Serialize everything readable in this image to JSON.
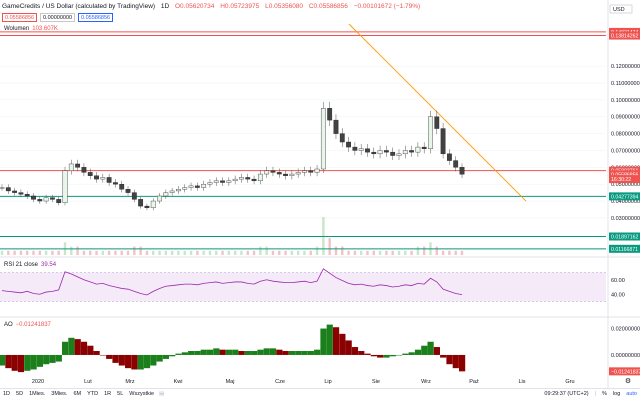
{
  "header": {
    "symbol": "GameCredits / US Dollar (calculated by TradingView)",
    "interval": "1D",
    "open": "O0.05620734",
    "high": "H0.05723975",
    "low": "L0.05356080",
    "close": "C0.05586856",
    "change": "−0.00101672 (−1.79%)",
    "price_boxes": [
      "0.05586856",
      "0.00000000",
      "0.05586856"
    ]
  },
  "volume_label": {
    "name": "Wolumen",
    "value": "103.607K"
  },
  "rsi_label": {
    "name": "RSI 21 close",
    "value": "39.54"
  },
  "ao_label": {
    "name": "AO",
    "value": "−0.01241837"
  },
  "right_axis": {
    "top_label": "USD",
    "price_ticks": [
      "0.12000000",
      "0.11000000",
      "0.10000000",
      "0.09000000",
      "0.08000000",
      "0.07000000",
      "0.06000000",
      "0.05000000",
      "0.04000000",
      "0.03000000"
    ],
    "price_tick_values": [
      0.12,
      0.11,
      0.1,
      0.09,
      0.08,
      0.07,
      0.06,
      0.05,
      0.04,
      0.03
    ],
    "rsi_ticks": [
      "60.00",
      "40.00"
    ],
    "rsi_tick_values": [
      60,
      40
    ],
    "ao_ticks": [
      "0.02000000",
      "0.00000000"
    ],
    "ao_tick_values": [
      0.02,
      0.0
    ],
    "level_labels": [
      {
        "text": "0.14031474",
        "value": 0.14031474,
        "color": "#ef5350"
      },
      {
        "text": "0.13814262",
        "value": 0.13814262,
        "color": "#ef5350"
      },
      {
        "text": "0.05803761",
        "value": 0.05803761,
        "color": "#ef5350"
      },
      {
        "text": "0.05586856",
        "value": 0.05586856,
        "color": "#ef5350"
      },
      {
        "text": "16:30:22",
        "value": 0.053,
        "color": "#ef5350"
      },
      {
        "text": "0.04277394",
        "value": 0.04277394,
        "color": "#089981"
      },
      {
        "text": "0.01897162",
        "value": 0.01897162,
        "color": "#089981"
      },
      {
        "text": "0.01166871",
        "value": 0.01166871,
        "color": "#089981"
      }
    ]
  },
  "time_axis": [
    "2020",
    "Lut",
    "Mrz",
    "Kwi",
    "Maj",
    "Cze",
    "Lip",
    "Sie",
    "Wrz",
    "Paź",
    "Lis",
    "Gru"
  ],
  "bottom_bar": {
    "timeframes": [
      "1D",
      "5D",
      "1Mies.",
      "3Mies.",
      "6M",
      "YTD",
      "1R",
      "5L",
      "Wszystkie"
    ],
    "clock": "09:29:37 (UTC+2)",
    "percent": "%",
    "log": "log",
    "auto": "auto"
  },
  "chart_data": {
    "type": "candlestick",
    "x_period": [
      "2020-01-01",
      "2020-09-24"
    ],
    "price_approx": [
      0.048,
      0.046,
      0.045,
      0.044,
      0.043,
      0.041,
      0.04,
      0.042,
      0.041,
      0.039,
      0.058,
      0.062,
      0.06,
      0.057,
      0.055,
      0.053,
      0.054,
      0.051,
      0.05,
      0.047,
      0.045,
      0.041,
      0.037,
      0.036,
      0.04,
      0.043,
      0.045,
      0.046,
      0.047,
      0.048,
      0.049,
      0.048,
      0.05,
      0.051,
      0.052,
      0.051,
      0.052,
      0.053,
      0.054,
      0.053,
      0.052,
      0.056,
      0.058,
      0.057,
      0.056,
      0.055,
      0.056,
      0.057,
      0.058,
      0.057,
      0.059,
      0.095,
      0.088,
      0.08,
      0.075,
      0.072,
      0.07,
      0.071,
      0.069,
      0.068,
      0.07,
      0.069,
      0.067,
      0.068,
      0.07,
      0.069,
      0.072,
      0.071,
      0.09,
      0.083,
      0.068,
      0.064,
      0.06,
      0.05586856
    ],
    "rsi_approx": [
      45,
      44,
      43,
      42,
      44,
      41,
      40,
      43,
      44,
      46,
      71,
      68,
      64,
      60,
      57,
      54,
      55,
      52,
      50,
      48,
      47,
      44,
      41,
      39,
      44,
      48,
      51,
      52,
      53,
      54,
      54,
      53,
      55,
      56,
      57,
      55,
      56,
      57,
      57,
      55,
      54,
      58,
      60,
      58,
      57,
      56,
      56,
      57,
      58,
      56,
      58,
      75,
      69,
      63,
      59,
      55,
      53,
      54,
      52,
      51,
      53,
      52,
      50,
      51,
      53,
      52,
      55,
      54,
      62,
      57,
      47,
      44,
      41,
      39.54
    ],
    "ao_approx": [
      -0.008,
      -0.01,
      -0.012,
      -0.013,
      -0.012,
      -0.011,
      -0.009,
      -0.007,
      -0.006,
      -0.005,
      0.01,
      0.013,
      0.012,
      0.01,
      0.007,
      0.003,
      0.0,
      -0.003,
      -0.006,
      -0.008,
      -0.01,
      -0.011,
      -0.011,
      -0.01,
      -0.008,
      -0.005,
      -0.003,
      -0.001,
      0.001,
      0.002,
      0.003,
      0.003,
      0.004,
      0.004,
      0.005,
      0.004,
      0.004,
      0.004,
      0.003,
      0.003,
      0.003,
      0.004,
      0.005,
      0.005,
      0.004,
      0.003,
      0.003,
      0.003,
      0.003,
      0.003,
      0.004,
      0.02,
      0.023,
      0.021,
      0.016,
      0.011,
      0.006,
      0.003,
      0.001,
      -0.001,
      -0.002,
      -0.002,
      -0.001,
      0.0,
      0.001,
      0.002,
      0.004,
      0.007,
      0.01,
      0.006,
      -0.002,
      -0.007,
      -0.01,
      -0.01241837
    ],
    "volume_approx": [
      1,
      1,
      1,
      1,
      1,
      1,
      1,
      1,
      1,
      1,
      3,
      2,
      2,
      1,
      1,
      1,
      1,
      1,
      1,
      1,
      1,
      2,
      2,
      1,
      1,
      1,
      1,
      1,
      1,
      1,
      1,
      1,
      1,
      1,
      1,
      1,
      1,
      1,
      1,
      1,
      1,
      2,
      2,
      1,
      1,
      1,
      1,
      1,
      1,
      1,
      2,
      9,
      4,
      2,
      2,
      1,
      1,
      1,
      1,
      1,
      1,
      1,
      1,
      1,
      1,
      1,
      2,
      2,
      3,
      2,
      1,
      1,
      1,
      1
    ],
    "horizontal_levels": [
      0.14031474,
      0.13814262,
      0.05803761,
      0.04277394,
      0.01897162,
      0.01166871
    ],
    "trendline": {
      "from": [
        0.145,
        "2020-07-10"
      ],
      "to": [
        0.04,
        "2020-10-08"
      ]
    },
    "rsi_band": [
      30,
      70
    ]
  }
}
